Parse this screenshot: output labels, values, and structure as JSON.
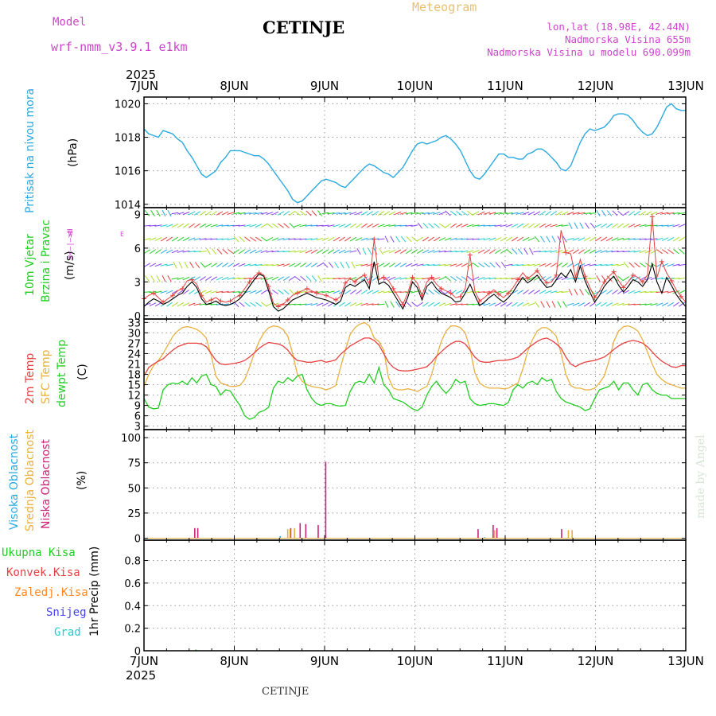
{
  "header": {
    "model_label": "Model",
    "model_name": "wrf-nmm_v3.9.1 e1km",
    "station": "CETINJE",
    "meteogram": "Meteogram",
    "lonlat": "lon,lat (18.98E, 42.44N)",
    "altitude": "Nadmorska Visina 655m",
    "model_altitude": "Nadmorska Visina u modelu 690.099m",
    "footer_station": "CETINJE",
    "credit": "made by Angel",
    "year_top": "2025",
    "year_bottom": "2025"
  },
  "colors": {
    "pressure": "#29a9e0",
    "temp2m": "#e84040",
    "sfc": "#e8b040",
    "dewpt": "#22cc22",
    "high_cloud": "#29a9e0",
    "mid_cloud": "#e8b040",
    "low_cloud": "#cc2277",
    "total_precip": "#22cc22",
    "conv": "#e84040",
    "frozen": "#ff8822",
    "snow": "#4444ee",
    "hail": "#22cccc",
    "model_purple": "#cc44cc"
  },
  "panels": {
    "pressure": {
      "label": "Pritisak na nivou mora",
      "unit": "(hPa)"
    },
    "wind": {
      "label1": "10m Vjetar",
      "label2": "Brzina i Pravac",
      "unit": "(m/s)",
      "compass": [
        "N",
        "W",
        "E",
        "S"
      ]
    },
    "temp": {
      "label1": "2m Temp",
      "label2": "SFC Temp",
      "label3": "dewpt Temp",
      "unit": "(C)"
    },
    "cloud": {
      "label1": "Visoka Oblacnost",
      "label2": "Srednja Oblacnost",
      "label3": "Niska Oblacnost",
      "unit": "(%)"
    },
    "precip": {
      "labels": [
        "Ukupna Kisa",
        "Konvek.Kisa",
        "Zaledj.Kisa",
        "Snijeg",
        "Grad"
      ],
      "unit": "1hr Precip (mm)"
    }
  },
  "chart_data": [
    {
      "type": "line",
      "title": "Pritisak na nivou mora",
      "ylabel": "(hPa)",
      "x_ticks": [
        "7JUN",
        "8JUN",
        "9JUN",
        "10JUN",
        "11JUN",
        "12JUN",
        "13JUN"
      ],
      "y_ticks": [
        1014,
        1016,
        1018,
        1020
      ],
      "ylim": [
        1013.8,
        1020.4
      ],
      "grid": true,
      "series": [
        {
          "values": [
            1018.5,
            1018.2,
            1018.1,
            1018.0,
            1018.4,
            1018.3,
            1018.2,
            1017.9,
            1017.7,
            1017.2,
            1016.8,
            1016.3,
            1015.8,
            1015.6,
            1015.8,
            1016.0,
            1016.5,
            1016.8,
            1017.2,
            1017.2,
            1017.2,
            1017.1,
            1017.0,
            1016.9,
            1016.9,
            1016.7,
            1016.4,
            1016.0,
            1015.6,
            1015.2,
            1014.8,
            1014.3,
            1014.1,
            1014.2,
            1014.5,
            1014.8,
            1015.1,
            1015.4,
            1015.5,
            1015.4,
            1015.3,
            1015.1,
            1015.0,
            1015.3,
            1015.6,
            1015.9,
            1016.2,
            1016.4,
            1016.3,
            1016.1,
            1015.9,
            1015.8,
            1015.6,
            1015.9,
            1016.2,
            1016.7,
            1017.2,
            1017.6,
            1017.7,
            1017.6,
            1017.7,
            1017.8,
            1018.0,
            1018.1,
            1017.9,
            1017.6,
            1017.2,
            1016.6,
            1016.0,
            1015.6,
            1015.5,
            1015.8,
            1016.2,
            1016.6,
            1017.0,
            1017.0,
            1016.8,
            1016.8,
            1016.7,
            1016.7,
            1017.0,
            1017.1,
            1017.3,
            1017.3,
            1017.1,
            1016.8,
            1016.5,
            1016.1,
            1016.0,
            1016.3,
            1017.0,
            1017.7,
            1018.2,
            1018.5,
            1018.4,
            1018.5,
            1018.6,
            1018.9,
            1019.3,
            1019.4,
            1019.4,
            1019.3,
            1019.0,
            1018.6,
            1018.3,
            1018.1,
            1018.2,
            1018.6,
            1019.2,
            1019.8,
            1020.0,
            1019.7,
            1019.6,
            1019.6
          ]
        }
      ]
    },
    {
      "type": "line",
      "title": "10m Vjetar Brzina i Pravac",
      "ylabel": "(m/s)",
      "y_ticks": [
        0,
        3,
        6,
        9
      ],
      "ylim": [
        -0.3,
        9.6
      ],
      "grid": true,
      "series": [
        {
          "values": [
            0.8,
            1.2,
            1.5,
            1.3,
            1.0,
            1.2,
            1.5,
            1.8,
            2.0,
            2.6,
            3.0,
            2.5,
            1.5,
            1.0,
            1.1,
            1.3,
            1.0,
            0.9,
            1.0,
            1.2,
            1.5,
            2.0,
            2.6,
            3.2,
            3.7,
            3.5,
            2.2,
            0.8,
            0.4,
            0.6,
            1.0,
            1.4,
            1.6,
            1.8,
            2.0,
            1.8,
            1.6,
            1.5,
            1.4,
            1.2,
            1.0,
            1.3,
            2.5,
            2.8,
            2.6,
            2.9,
            3.2,
            2.4,
            4.8,
            2.8,
            3.0,
            2.7,
            2.0,
            1.3,
            0.6,
            1.6,
            3.0,
            2.5,
            1.4,
            2.6,
            3.0,
            2.4,
            2.0,
            1.8,
            1.6,
            1.2,
            1.3,
            2.0,
            2.8,
            1.8,
            0.9,
            1.2,
            1.6,
            1.9,
            1.5,
            1.2,
            1.6,
            2.1,
            2.8,
            3.4,
            2.9,
            3.2,
            3.6,
            3.0,
            2.5,
            2.6,
            3.2,
            3.8,
            3.4,
            4.1,
            3.0,
            4.4,
            3.1,
            2.1,
            1.2,
            1.8,
            2.6,
            3.1,
            3.5,
            2.7,
            2.1,
            2.6,
            3.2,
            3.0,
            2.6,
            3.2,
            4.6,
            3.0,
            2.0,
            3.4,
            2.7,
            1.9,
            1.3,
            0.8
          ]
        },
        {
          "values": [
            1.5,
            1.8,
            2.0,
            1.6,
            1.2,
            1.5,
            1.8,
            2.2,
            2.4,
            3.1,
            3.2,
            2.8,
            1.8,
            1.2,
            1.4,
            1.6,
            1.3,
            1.2,
            1.3,
            1.6,
            1.8,
            2.4,
            3.0,
            3.5,
            3.8,
            3.6,
            2.6,
            1.1,
            0.8,
            1.0,
            1.4,
            1.8,
            2.0,
            2.2,
            2.4,
            2.2,
            2.0,
            1.9,
            1.8,
            1.6,
            1.4,
            1.7,
            2.9,
            3.3,
            3.0,
            3.4,
            3.6,
            2.8,
            6.8,
            3.2,
            3.4,
            3.1,
            2.4,
            1.7,
            1.0,
            2.0,
            3.4,
            2.9,
            1.8,
            3.0,
            3.4,
            2.8,
            2.4,
            2.2,
            2.0,
            1.6,
            1.7,
            2.4,
            5.4,
            2.2,
            1.3,
            1.6,
            2.0,
            2.3,
            1.9,
            1.6,
            2.0,
            2.5,
            3.2,
            3.8,
            3.3,
            3.6,
            4.0,
            3.4,
            2.9,
            3.0,
            3.6,
            7.6,
            5.6,
            5.5,
            3.4,
            5.0,
            3.5,
            2.5,
            1.6,
            2.2,
            3.0,
            3.5,
            3.9,
            3.1,
            2.5,
            3.0,
            3.6,
            3.4,
            3.0,
            3.6,
            8.8,
            3.4,
            4.8,
            3.8,
            3.1,
            2.3,
            1.7,
            1.2
          ]
        }
      ]
    },
    {
      "type": "line",
      "title": "2m Temp / SFC Temp / dewpt Temp",
      "ylabel": "(C)",
      "y_ticks": [
        3,
        6,
        9,
        12,
        15,
        18,
        21,
        24,
        27,
        30,
        33
      ],
      "ylim": [
        2,
        34
      ],
      "grid": true,
      "series": [
        {
          "name": "2m Temp",
          "values": [
            17.5,
            20.0,
            21.0,
            21.8,
            22.5,
            23.8,
            25.0,
            26.0,
            26.5,
            27.0,
            27.0,
            27.0,
            26.8,
            26.0,
            24.0,
            22.0,
            21.0,
            20.8,
            21.0,
            21.2,
            21.5,
            22.0,
            23.0,
            24.2,
            25.5,
            26.5,
            27.2,
            27.0,
            26.8,
            26.2,
            25.0,
            23.2,
            22.0,
            21.8,
            21.5,
            21.5,
            21.8,
            22.0,
            21.5,
            21.8,
            22.2,
            23.8,
            25.0,
            26.2,
            27.0,
            27.8,
            28.5,
            28.5,
            27.8,
            26.5,
            24.0,
            21.5,
            20.0,
            19.2,
            19.0,
            19.0,
            19.2,
            19.5,
            19.8,
            20.2,
            21.5,
            23.2,
            24.5,
            25.8,
            26.8,
            27.5,
            27.5,
            26.8,
            25.0,
            23.0,
            21.8,
            21.5,
            21.5,
            21.8,
            22.0,
            22.0,
            22.2,
            22.5,
            23.0,
            24.2,
            25.5,
            26.5,
            27.5,
            28.2,
            28.5,
            27.8,
            26.8,
            25.5,
            23.0,
            21.0,
            20.2,
            21.0,
            21.5,
            21.8,
            22.0,
            22.5,
            23.0,
            24.0,
            25.2,
            26.2,
            27.0,
            27.5,
            27.8,
            27.5,
            27.0,
            26.0,
            24.5,
            23.0,
            21.8,
            21.0,
            20.2,
            20.0,
            20.5,
            20.5
          ]
        },
        {
          "name": "SFC Temp",
          "values": [
            14.5,
            18.0,
            20.5,
            22.0,
            24.0,
            26.5,
            29.0,
            30.5,
            31.5,
            31.8,
            31.5,
            31.0,
            30.0,
            28.5,
            23.5,
            17.5,
            15.5,
            15.0,
            14.5,
            14.5,
            14.8,
            16.5,
            20.0,
            24.0,
            27.5,
            30.0,
            31.5,
            32.0,
            31.8,
            31.0,
            29.0,
            24.0,
            18.0,
            16.0,
            15.0,
            14.5,
            14.2,
            14.0,
            13.5,
            14.0,
            14.8,
            20.0,
            25.0,
            29.5,
            31.5,
            32.5,
            33.0,
            32.0,
            28.5,
            27.5,
            25.0,
            17.0,
            14.0,
            13.5,
            13.5,
            13.8,
            13.5,
            13.0,
            13.8,
            14.5,
            18.0,
            23.0,
            27.5,
            30.5,
            32.0,
            32.0,
            31.5,
            30.0,
            25.5,
            18.5,
            15.5,
            14.5,
            14.0,
            14.0,
            14.0,
            13.8,
            14.0,
            14.8,
            15.5,
            19.5,
            24.5,
            28.0,
            30.5,
            31.5,
            31.5,
            30.5,
            29.0,
            24.0,
            18.0,
            14.8,
            14.0,
            14.0,
            13.5,
            13.5,
            14.0,
            15.5,
            17.5,
            22.0,
            27.5,
            30.5,
            31.8,
            32.0,
            31.5,
            30.5,
            28.0,
            24.5,
            21.0,
            18.0,
            16.5,
            15.5,
            15.0,
            14.5,
            14.0,
            14.0
          ]
        },
        {
          "name": "dewpt Temp",
          "values": [
            11.0,
            8.5,
            8.0,
            8.2,
            13.5,
            15.0,
            15.5,
            15.2,
            16.0,
            15.0,
            17.0,
            15.5,
            17.5,
            18.0,
            15.0,
            14.5,
            12.0,
            13.5,
            13.2,
            11.0,
            9.0,
            6.0,
            5.0,
            5.5,
            7.0,
            7.5,
            8.5,
            14.0,
            16.0,
            15.5,
            17.0,
            16.0,
            17.5,
            18.0,
            13.5,
            11.0,
            9.5,
            9.0,
            9.5,
            9.5,
            9.0,
            8.8,
            9.0,
            13.0,
            15.5,
            16.0,
            15.5,
            18.0,
            15.5,
            20.0,
            15.0,
            13.5,
            11.0,
            10.5,
            10.0,
            9.0,
            8.0,
            7.5,
            8.5,
            12.0,
            14.5,
            16.0,
            14.0,
            12.5,
            14.0,
            16.5,
            15.5,
            16.0,
            11.0,
            9.5,
            9.0,
            9.2,
            9.5,
            9.5,
            9.2,
            9.0,
            9.8,
            13.5,
            15.0,
            14.0,
            15.5,
            16.0,
            15.0,
            17.0,
            16.0,
            16.5,
            13.0,
            11.0,
            10.0,
            9.5,
            9.0,
            8.5,
            7.5,
            8.0,
            11.0,
            13.5,
            14.0,
            14.5,
            16.0,
            13.5,
            15.5,
            15.5,
            13.5,
            12.0,
            15.0,
            15.5,
            13.5,
            12.5,
            12.0,
            12.0,
            11.0,
            11.0,
            11.0,
            11.0
          ]
        }
      ]
    },
    {
      "type": "bar",
      "title": "Visoka / Srednja / Niska Oblacnost",
      "ylabel": "(%)",
      "y_ticks": [
        0,
        25,
        50,
        75,
        100
      ],
      "ylim": [
        -2,
        108
      ],
      "grid": true,
      "series": [
        {
          "name": "Niska Oblacnost",
          "points": [
            [
              13.5,
              10
            ],
            [
              14.3,
              10
            ],
            [
              39.0,
              10
            ],
            [
              41.5,
              15
            ],
            [
              43.0,
              14
            ],
            [
              46.3,
              13
            ],
            [
              48.3,
              76
            ],
            [
              88.8,
              9
            ],
            [
              92.8,
              13
            ],
            [
              93.8,
              10
            ],
            [
              111.0,
              9
            ]
          ]
        },
        {
          "name": "Srednja Oblacnost",
          "points": [
            [
              38.2,
              9
            ],
            [
              38.8,
              9
            ],
            [
              40.0,
              10
            ],
            [
              93.2,
              8
            ],
            [
              112.8,
              8
            ],
            [
              113.8,
              8
            ]
          ]
        },
        {
          "name": "Visoka Oblacnost",
          "points": [
            [
              36.2,
              2
            ],
            [
              90.5,
              1
            ]
          ]
        }
      ]
    },
    {
      "type": "bar",
      "title": "1hr Precip",
      "ylabel": "1hr Precip (mm)",
      "y_ticks": [
        0,
        0.2,
        0.4,
        0.6,
        0.8
      ],
      "ylim": [
        0,
        0.98
      ],
      "grid": true,
      "series": [
        {
          "name": "Ukupna Kisa",
          "points": [
            [
              13.8,
              0.01
            ]
          ]
        }
      ]
    }
  ]
}
